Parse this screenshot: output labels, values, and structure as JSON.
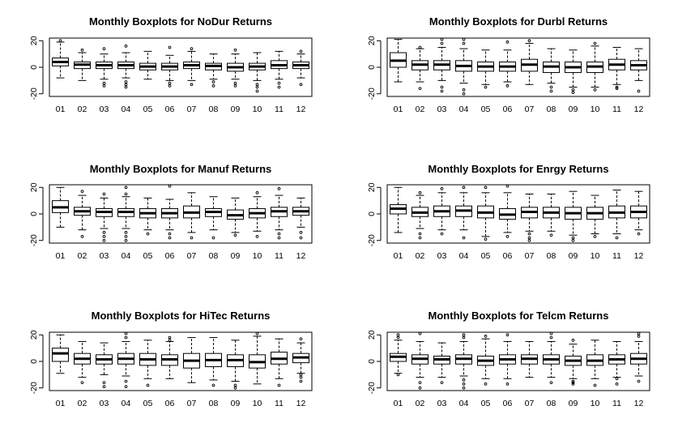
{
  "chart_data": [
    {
      "type": "boxplot",
      "title": "Monthly Boxplots for NoDur Returns",
      "categories": [
        "01",
        "02",
        "03",
        "04",
        "05",
        "06",
        "07",
        "08",
        "09",
        "10",
        "11",
        "12"
      ],
      "y_ticks": [
        -20,
        0,
        20
      ],
      "ylim": [
        -22,
        22
      ],
      "boxes": [
        {
          "min": -8,
          "q1": 1,
          "median": 4,
          "q3": 7,
          "max": 19,
          "outliers": [
            20
          ]
        },
        {
          "min": -10,
          "q1": -1,
          "median": 2,
          "q3": 4,
          "max": 11,
          "outliers": [
            13
          ]
        },
        {
          "min": -9,
          "q1": -1,
          "median": 1.5,
          "q3": 4,
          "max": 10,
          "outliers": [
            -12,
            -14,
            14
          ]
        },
        {
          "min": -8,
          "q1": -1,
          "median": 1.5,
          "q3": 4,
          "max": 11,
          "outliers": [
            -11,
            -13,
            -15,
            16
          ]
        },
        {
          "min": -9,
          "q1": -2,
          "median": 0.5,
          "q3": 3,
          "max": 12,
          "outliers": []
        },
        {
          "min": -10,
          "q1": -2,
          "median": 0.5,
          "q3": 3,
          "max": 9,
          "outliers": [
            -12,
            -14,
            15
          ]
        },
        {
          "min": -10,
          "q1": -1,
          "median": 1.5,
          "q3": 4,
          "max": 12,
          "outliers": [
            -13,
            14
          ]
        },
        {
          "min": -9,
          "q1": -2,
          "median": 1,
          "q3": 3,
          "max": 10,
          "outliers": [
            -11,
            -14
          ]
        },
        {
          "min": -9,
          "q1": -3,
          "median": 0,
          "q3": 3,
          "max": 10,
          "outliers": [
            -12,
            -14,
            13
          ]
        },
        {
          "min": -10,
          "q1": -2,
          "median": 0.5,
          "q3": 3,
          "max": 11,
          "outliers": [
            -13,
            -15,
            -18
          ]
        },
        {
          "min": -9,
          "q1": -1,
          "median": 1.5,
          "q3": 5,
          "max": 12,
          "outliers": [
            -12,
            -15
          ]
        },
        {
          "min": -8,
          "q1": -1,
          "median": 1.5,
          "q3": 4,
          "max": 10,
          "outliers": [
            -13,
            12
          ]
        }
      ]
    },
    {
      "type": "boxplot",
      "title": "Monthly Boxplots for Durbl Returns",
      "categories": [
        "01",
        "02",
        "03",
        "04",
        "05",
        "06",
        "07",
        "08",
        "09",
        "10",
        "11",
        "12"
      ],
      "y_ticks": [
        -20,
        0,
        20
      ],
      "ylim": [
        -22,
        22
      ],
      "boxes": [
        {
          "min": -11,
          "q1": 0,
          "median": 5,
          "q3": 11,
          "max": 21,
          "outliers": []
        },
        {
          "min": -11,
          "q1": -2,
          "median": 2,
          "q3": 5,
          "max": 14,
          "outliers": [
            -16,
            15
          ]
        },
        {
          "min": -10,
          "q1": -2,
          "median": 2,
          "q3": 5,
          "max": 15,
          "outliers": [
            -15,
            -18,
            18,
            21
          ]
        },
        {
          "min": -12,
          "q1": -3,
          "median": 1,
          "q3": 5,
          "max": 14,
          "outliers": [
            -17,
            -20,
            18,
            21
          ]
        },
        {
          "min": -13,
          "q1": -3,
          "median": 0.5,
          "q3": 4,
          "max": 13,
          "outliers": [
            -15
          ]
        },
        {
          "min": -11,
          "q1": -3,
          "median": 0.5,
          "q3": 4,
          "max": 13,
          "outliers": [
            -14,
            19
          ]
        },
        {
          "min": -13,
          "q1": -3,
          "median": 2,
          "q3": 6,
          "max": 18,
          "outliers": [
            20
          ]
        },
        {
          "min": -12,
          "q1": -4,
          "median": 0.5,
          "q3": 4,
          "max": 14,
          "outliers": [
            -15,
            -18
          ]
        },
        {
          "min": -15,
          "q1": -4,
          "median": 0,
          "q3": 4,
          "max": 13,
          "outliers": [
            -17,
            -19
          ]
        },
        {
          "min": -15,
          "q1": -4,
          "median": 0.5,
          "q3": 4,
          "max": 16,
          "outliers": [
            -17,
            18
          ]
        },
        {
          "min": -13,
          "q1": -2,
          "median": 2,
          "q3": 6,
          "max": 15,
          "outliers": [
            -15,
            -16
          ]
        },
        {
          "min": -10,
          "q1": -2,
          "median": 1.5,
          "q3": 5,
          "max": 14,
          "outliers": [
            -18
          ]
        }
      ]
    },
    {
      "type": "boxplot",
      "title": "Monthly Boxplots for Manuf Returns",
      "categories": [
        "01",
        "02",
        "03",
        "04",
        "05",
        "06",
        "07",
        "08",
        "09",
        "10",
        "11",
        "12"
      ],
      "y_ticks": [
        -20,
        0,
        20
      ],
      "ylim": [
        -22,
        22
      ],
      "boxes": [
        {
          "min": -10,
          "q1": 1,
          "median": 5,
          "q3": 10,
          "max": 20,
          "outliers": []
        },
        {
          "min": -12,
          "q1": -1,
          "median": 2,
          "q3": 5,
          "max": 14,
          "outliers": [
            -17,
            17
          ]
        },
        {
          "min": -11,
          "q1": -2,
          "median": 1.5,
          "q3": 4,
          "max": 12,
          "outliers": [
            -14,
            -17,
            -20,
            15
          ]
        },
        {
          "min": -11,
          "q1": -2,
          "median": 1.5,
          "q3": 4,
          "max": 13,
          "outliers": [
            -14,
            -17,
            -20,
            15,
            20
          ]
        },
        {
          "min": -12,
          "q1": -3,
          "median": 0.5,
          "q3": 4,
          "max": 12,
          "outliers": [
            -15
          ]
        },
        {
          "min": -12,
          "q1": -3,
          "median": 0.5,
          "q3": 4,
          "max": 11,
          "outliers": [
            -15,
            -18,
            21
          ]
        },
        {
          "min": -14,
          "q1": -3,
          "median": 1,
          "q3": 6,
          "max": 16,
          "outliers": [
            -18
          ]
        },
        {
          "min": -12,
          "q1": -2,
          "median": 1.5,
          "q3": 4,
          "max": 13,
          "outliers": [
            -18
          ]
        },
        {
          "min": -14,
          "q1": -4,
          "median": -1,
          "q3": 3,
          "max": 12,
          "outliers": [
            -16
          ]
        },
        {
          "min": -13,
          "q1": -3,
          "median": 0.5,
          "q3": 4,
          "max": 13,
          "outliers": [
            -17,
            16
          ]
        },
        {
          "min": -12,
          "q1": -2,
          "median": 2,
          "q3": 5,
          "max": 14,
          "outliers": [
            -15,
            -18,
            19
          ]
        },
        {
          "min": -10,
          "q1": -1,
          "median": 2,
          "q3": 5,
          "max": 12,
          "outliers": [
            -14,
            -18
          ]
        }
      ]
    },
    {
      "type": "boxplot",
      "title": "Monthly Boxplots for Enrgy Returns",
      "categories": [
        "01",
        "02",
        "03",
        "04",
        "05",
        "06",
        "07",
        "08",
        "09",
        "10",
        "11",
        "12"
      ],
      "y_ticks": [
        -20,
        0,
        20
      ],
      "ylim": [
        -22,
        22
      ],
      "boxes": [
        {
          "min": -14,
          "q1": 0,
          "median": 4,
          "q3": 7,
          "max": 20,
          "outliers": []
        },
        {
          "min": -11,
          "q1": -2,
          "median": 1,
          "q3": 5,
          "max": 14,
          "outliers": [
            -15,
            -18,
            16
          ]
        },
        {
          "min": -12,
          "q1": -2,
          "median": 2,
          "q3": 6,
          "max": 16,
          "outliers": [
            -15,
            19
          ]
        },
        {
          "min": -12,
          "q1": -2,
          "median": 2.5,
          "q3": 6,
          "max": 16,
          "outliers": [
            -18,
            20
          ]
        },
        {
          "min": -17,
          "q1": -3,
          "median": 1,
          "q3": 6,
          "max": 16,
          "outliers": [
            -19,
            20
          ]
        },
        {
          "min": -14,
          "q1": -4,
          "median": -0.5,
          "q3": 4,
          "max": 16,
          "outliers": [
            -17,
            21
          ]
        },
        {
          "min": -13,
          "q1": -3,
          "median": 1.5,
          "q3": 5,
          "max": 15,
          "outliers": [
            -15,
            -18,
            -20
          ]
        },
        {
          "min": -13,
          "q1": -3,
          "median": 1,
          "q3": 5,
          "max": 15,
          "outliers": [
            -16
          ]
        },
        {
          "min": -16,
          "q1": -4,
          "median": 0.5,
          "q3": 5,
          "max": 17,
          "outliers": [
            -18,
            -20
          ]
        },
        {
          "min": -15,
          "q1": -4,
          "median": 0.5,
          "q3": 5,
          "max": 14,
          "outliers": [
            -17
          ]
        },
        {
          "min": -15,
          "q1": -3,
          "median": 1,
          "q3": 6,
          "max": 18,
          "outliers": [
            -18
          ]
        },
        {
          "min": -12,
          "q1": -3,
          "median": 1.5,
          "q3": 6,
          "max": 17,
          "outliers": [
            -15
          ]
        }
      ]
    },
    {
      "type": "boxplot",
      "title": "Monthly Boxplots for HiTec Returns",
      "categories": [
        "01",
        "02",
        "03",
        "04",
        "05",
        "06",
        "07",
        "08",
        "09",
        "10",
        "11",
        "12"
      ],
      "y_ticks": [
        -20,
        0,
        20
      ],
      "ylim": [
        -22,
        22
      ],
      "boxes": [
        {
          "min": -9,
          "q1": 0,
          "median": 6,
          "q3": 10,
          "max": 20,
          "outliers": []
        },
        {
          "min": -12,
          "q1": -2,
          "median": 2,
          "q3": 6,
          "max": 15,
          "outliers": [
            -16
          ]
        },
        {
          "min": -10,
          "q1": -2,
          "median": 1.5,
          "q3": 5,
          "max": 14,
          "outliers": [
            -16,
            -19
          ]
        },
        {
          "min": -11,
          "q1": -2,
          "median": 2,
          "q3": 6,
          "max": 15,
          "outliers": [
            -15,
            -19,
            18,
            21
          ]
        },
        {
          "min": -13,
          "q1": -3,
          "median": 1.5,
          "q3": 6,
          "max": 16,
          "outliers": [
            -18
          ]
        },
        {
          "min": -13,
          "q1": -3,
          "median": 1.5,
          "q3": 5,
          "max": 15,
          "outliers": [
            16,
            18
          ]
        },
        {
          "min": -16,
          "q1": -5,
          "median": 0.5,
          "q3": 6,
          "max": 18,
          "outliers": []
        },
        {
          "min": -14,
          "q1": -4,
          "median": 1,
          "q3": 6,
          "max": 18,
          "outliers": [
            -18
          ]
        },
        {
          "min": -15,
          "q1": -4,
          "median": 1,
          "q3": 5,
          "max": 16,
          "outliers": [
            -18,
            -20
          ]
        },
        {
          "min": -17,
          "q1": -5,
          "median": -0.5,
          "q3": 5,
          "max": 19,
          "outliers": [
            21
          ]
        },
        {
          "min": -13,
          "q1": -2,
          "median": 2,
          "q3": 7,
          "max": 17,
          "outliers": [
            -18
          ]
        },
        {
          "min": -9,
          "q1": -1,
          "median": 3,
          "q3": 6,
          "max": 14,
          "outliers": [
            -10,
            -12,
            -15,
            17
          ]
        }
      ]
    },
    {
      "type": "boxplot",
      "title": "Monthly Boxplots for Telcm Returns",
      "categories": [
        "01",
        "02",
        "03",
        "04",
        "05",
        "06",
        "07",
        "08",
        "09",
        "10",
        "11",
        "12"
      ],
      "y_ticks": [
        -20,
        0,
        20
      ],
      "ylim": [
        -22,
        22
      ],
      "boxes": [
        {
          "min": -9,
          "q1": 0,
          "median": 3.5,
          "q3": 6,
          "max": 16,
          "outliers": [
            -10,
            18,
            20
          ]
        },
        {
          "min": -12,
          "q1": -2,
          "median": 2,
          "q3": 5,
          "max": 15,
          "outliers": [
            -16,
            -20,
            21
          ]
        },
        {
          "min": -12,
          "q1": -2,
          "median": 1.5,
          "q3": 4,
          "max": 14,
          "outliers": [
            -16
          ]
        },
        {
          "min": -11,
          "q1": -2,
          "median": 2,
          "q3": 5,
          "max": 15,
          "outliers": [
            -14,
            -17,
            -20,
            18,
            20
          ]
        },
        {
          "min": -13,
          "q1": -3,
          "median": 0.5,
          "q3": 4,
          "max": 17,
          "outliers": [
            -17,
            19
          ]
        },
        {
          "min": -13,
          "q1": -2,
          "median": 1.5,
          "q3": 5,
          "max": 15,
          "outliers": [
            -17,
            20
          ]
        },
        {
          "min": -12,
          "q1": -2,
          "median": 2,
          "q3": 5,
          "max": 15,
          "outliers": []
        },
        {
          "min": -12,
          "q1": -2,
          "median": 1.5,
          "q3": 5,
          "max": 15,
          "outliers": [
            -16,
            18,
            21
          ]
        },
        {
          "min": -13,
          "q1": -3,
          "median": 0.5,
          "q3": 4,
          "max": 13,
          "outliers": [
            -15,
            -16,
            -17,
            16
          ]
        },
        {
          "min": -13,
          "q1": -3,
          "median": 0.5,
          "q3": 5,
          "max": 16,
          "outliers": [
            -18
          ]
        },
        {
          "min": -12,
          "q1": -2,
          "median": 1.5,
          "q3": 5,
          "max": 15,
          "outliers": [
            -13,
            -17
          ]
        },
        {
          "min": -11,
          "q1": -2,
          "median": 2,
          "q3": 6,
          "max": 15,
          "outliers": [
            -15,
            19,
            21
          ]
        }
      ]
    }
  ]
}
